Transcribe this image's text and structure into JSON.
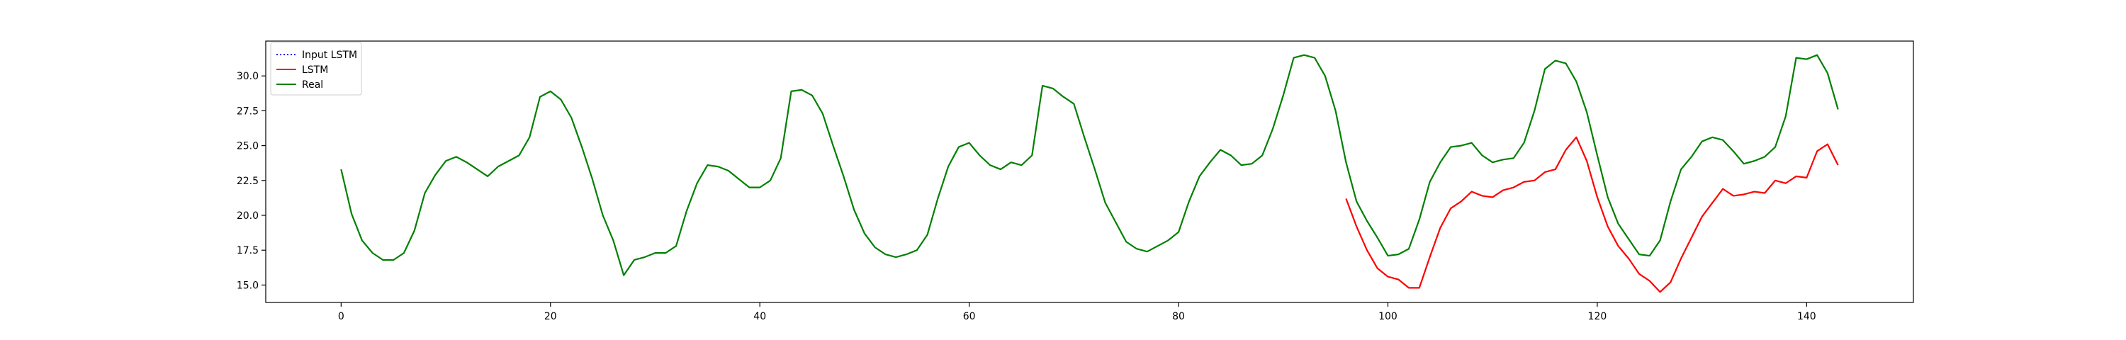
{
  "chart_data": {
    "type": "line",
    "title": "",
    "xlabel": "",
    "ylabel": "",
    "xlim": [
      -7.2,
      150.2
    ],
    "ylim": [
      13.75,
      32.5
    ],
    "xticks": [
      0,
      20,
      40,
      60,
      80,
      100,
      120,
      140
    ],
    "xtick_labels": [
      "0",
      "20",
      "40",
      "60",
      "80",
      "100",
      "120",
      "140"
    ],
    "yticks": [
      15.0,
      17.5,
      20.0,
      22.5,
      25.0,
      27.5,
      30.0
    ],
    "ytick_labels": [
      "15.0",
      "17.5",
      "20.0",
      "22.5",
      "25.0",
      "27.5",
      "30.0"
    ],
    "grid": false,
    "legend_position": "upper-left",
    "series": [
      {
        "name": "Input LSTM",
        "color": "#0000ff",
        "style": "dotted",
        "x": [],
        "values": []
      },
      {
        "name": "LSTM",
        "color": "#ff0000",
        "style": "solid",
        "x": [
          96,
          97,
          98,
          99,
          100,
          101,
          102,
          103,
          104,
          105,
          106,
          107,
          108,
          109,
          110,
          111,
          112,
          113,
          114,
          115,
          116,
          117,
          118,
          119,
          120,
          121,
          122,
          123,
          124,
          125,
          126,
          127,
          128,
          129,
          130,
          131,
          132,
          133,
          134,
          135,
          136,
          137,
          138,
          139,
          140,
          141,
          142,
          143
        ],
        "values": [
          21.2,
          19.2,
          17.5,
          16.2,
          15.6,
          15.4,
          14.8,
          14.8,
          17.0,
          19.1,
          20.5,
          21.0,
          21.7,
          21.4,
          21.3,
          21.8,
          22.0,
          22.4,
          22.5,
          23.1,
          23.3,
          24.7,
          25.6,
          23.9,
          21.3,
          19.2,
          17.8,
          16.9,
          15.8,
          15.3,
          14.5,
          15.2,
          16.9,
          18.4,
          19.9,
          20.9,
          21.9,
          21.4,
          21.5,
          21.7,
          21.6,
          22.5,
          22.3,
          22.8,
          22.7,
          24.6,
          25.1,
          23.6
        ]
      },
      {
        "name": "Real",
        "color": "#008000",
        "style": "solid",
        "x": [
          0,
          1,
          2,
          3,
          4,
          5,
          6,
          7,
          8,
          9,
          10,
          11,
          12,
          13,
          14,
          15,
          16,
          17,
          18,
          19,
          20,
          21,
          22,
          23,
          24,
          25,
          26,
          27,
          28,
          29,
          30,
          31,
          32,
          33,
          34,
          35,
          36,
          37,
          38,
          39,
          40,
          41,
          42,
          43,
          44,
          45,
          46,
          47,
          48,
          49,
          50,
          51,
          52,
          53,
          54,
          55,
          56,
          57,
          58,
          59,
          60,
          61,
          62,
          63,
          64,
          65,
          66,
          67,
          68,
          69,
          70,
          71,
          72,
          73,
          74,
          75,
          76,
          77,
          78,
          79,
          80,
          81,
          82,
          83,
          84,
          85,
          86,
          87,
          88,
          89,
          90,
          91,
          92,
          93,
          94,
          95,
          96,
          97,
          98,
          99,
          100,
          101,
          102,
          103,
          104,
          105,
          106,
          107,
          108,
          109,
          110,
          111,
          112,
          113,
          114,
          115,
          116,
          117,
          118,
          119,
          120,
          121,
          122,
          123,
          124,
          125,
          126,
          127,
          128,
          129,
          130,
          131,
          132,
          133,
          134,
          135,
          136,
          137,
          138,
          139,
          140,
          141,
          142,
          143
        ],
        "values": [
          23.3,
          20.1,
          18.2,
          17.3,
          16.8,
          16.8,
          17.3,
          18.9,
          21.6,
          22.9,
          23.9,
          24.2,
          23.8,
          23.3,
          22.8,
          23.5,
          23.9,
          24.3,
          25.6,
          28.5,
          28.9,
          28.3,
          27.0,
          24.9,
          22.6,
          20.0,
          18.2,
          15.7,
          16.8,
          17.0,
          17.3,
          17.3,
          17.8,
          20.3,
          22.3,
          23.6,
          23.5,
          23.2,
          22.6,
          22.0,
          22.0,
          22.5,
          24.1,
          28.9,
          29.0,
          28.6,
          27.3,
          25.0,
          22.8,
          20.4,
          18.7,
          17.7,
          17.2,
          17.0,
          17.2,
          17.5,
          18.6,
          21.2,
          23.5,
          24.9,
          25.2,
          24.3,
          23.6,
          23.3,
          23.8,
          23.6,
          24.3,
          29.3,
          29.1,
          28.5,
          28.0,
          25.6,
          23.3,
          20.9,
          19.5,
          18.1,
          17.6,
          17.4,
          17.8,
          18.2,
          18.8,
          21.0,
          22.8,
          23.8,
          24.7,
          24.3,
          23.6,
          23.7,
          24.3,
          26.2,
          28.6,
          31.3,
          31.5,
          31.3,
          30.0,
          27.5,
          23.8,
          21.0,
          19.6,
          18.4,
          17.1,
          17.2,
          17.6,
          19.7,
          22.4,
          23.8,
          24.9,
          25.0,
          25.2,
          24.3,
          23.8,
          24.0,
          24.1,
          25.2,
          27.5,
          30.5,
          31.1,
          30.9,
          29.6,
          27.4,
          24.3,
          21.3,
          19.4,
          18.3,
          17.2,
          17.1,
          18.2,
          21.0,
          23.3,
          24.2,
          25.3,
          25.6,
          25.4,
          24.6,
          23.7,
          23.9,
          24.2,
          24.9,
          27.1,
          31.3,
          31.2,
          31.5,
          30.2,
          27.6
        ]
      }
    ]
  }
}
